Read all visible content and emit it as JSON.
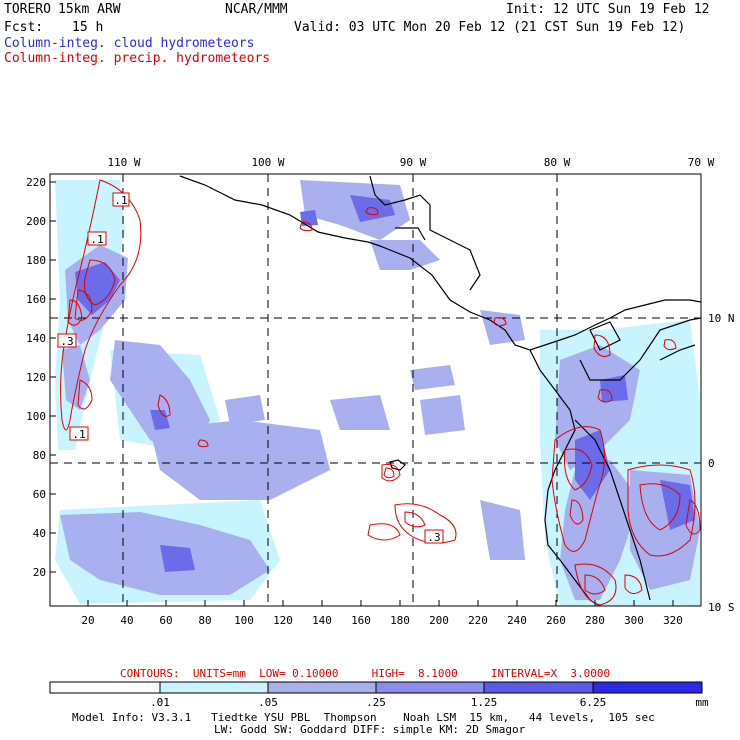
{
  "header": {
    "model": "TORERO",
    "resolution": "15km ARW",
    "org": "NCAR/MMM",
    "init": "Init: 12 UTC Sun 19 Feb 12",
    "fcst_label": "Fcst:",
    "fcst_value": "15 h",
    "valid": "Valid: 03 UTC Mon 20 Feb 12 (21 CST Sun 19 Feb 12)",
    "field1": "Column-integ. cloud hydrometeors",
    "field2": "Column-integ. precip. hydrometeors"
  },
  "colors": {
    "cloud": "#2a2adf",
    "precip": "#e00000",
    "fill_light": "#c8f4ff",
    "fill_mid": "#a8b0f0",
    "fill_dark": "#6a6cea",
    "fill_darkest": "#2a2ae8"
  },
  "map": {
    "lon_labels_top": [
      "110 W",
      "100 W",
      "90 W",
      "80 W",
      "70 W"
    ],
    "lat_labels_right": [
      "10 N",
      "0",
      "10 S"
    ],
    "y_axis_ticks": [
      "220",
      "200",
      "180",
      "160",
      "140",
      "120",
      "100",
      "80",
      "60",
      "40",
      "20"
    ],
    "x_axis_ticks": [
      "20",
      "40",
      "60",
      "80",
      "100",
      "120",
      "140",
      "160",
      "180",
      "200",
      "220",
      "240",
      "260",
      "280",
      "300",
      "320"
    ],
    "contour_labels": [
      ".1",
      ".1",
      ".3",
      ".1",
      ".3"
    ]
  },
  "contours_info": {
    "text": "CONTOURS:  UNITS=mm  LOW= 0.10000     HIGH=  8.1000     INTERVAL=X  3.0000"
  },
  "colorbar": {
    "ticks": [
      ".01",
      ".05",
      ".25",
      "1.25",
      "6.25"
    ],
    "unit": "mm"
  },
  "footer": {
    "line1": "Model Info: V3.3.1   Tiedtke YSU PBL  Thompson    Noah LSM  15 km,   44 levels,  105 sec",
    "line2": "LW: Godd SW: Goddard DIFF: simple KM: 2D Smagor"
  }
}
